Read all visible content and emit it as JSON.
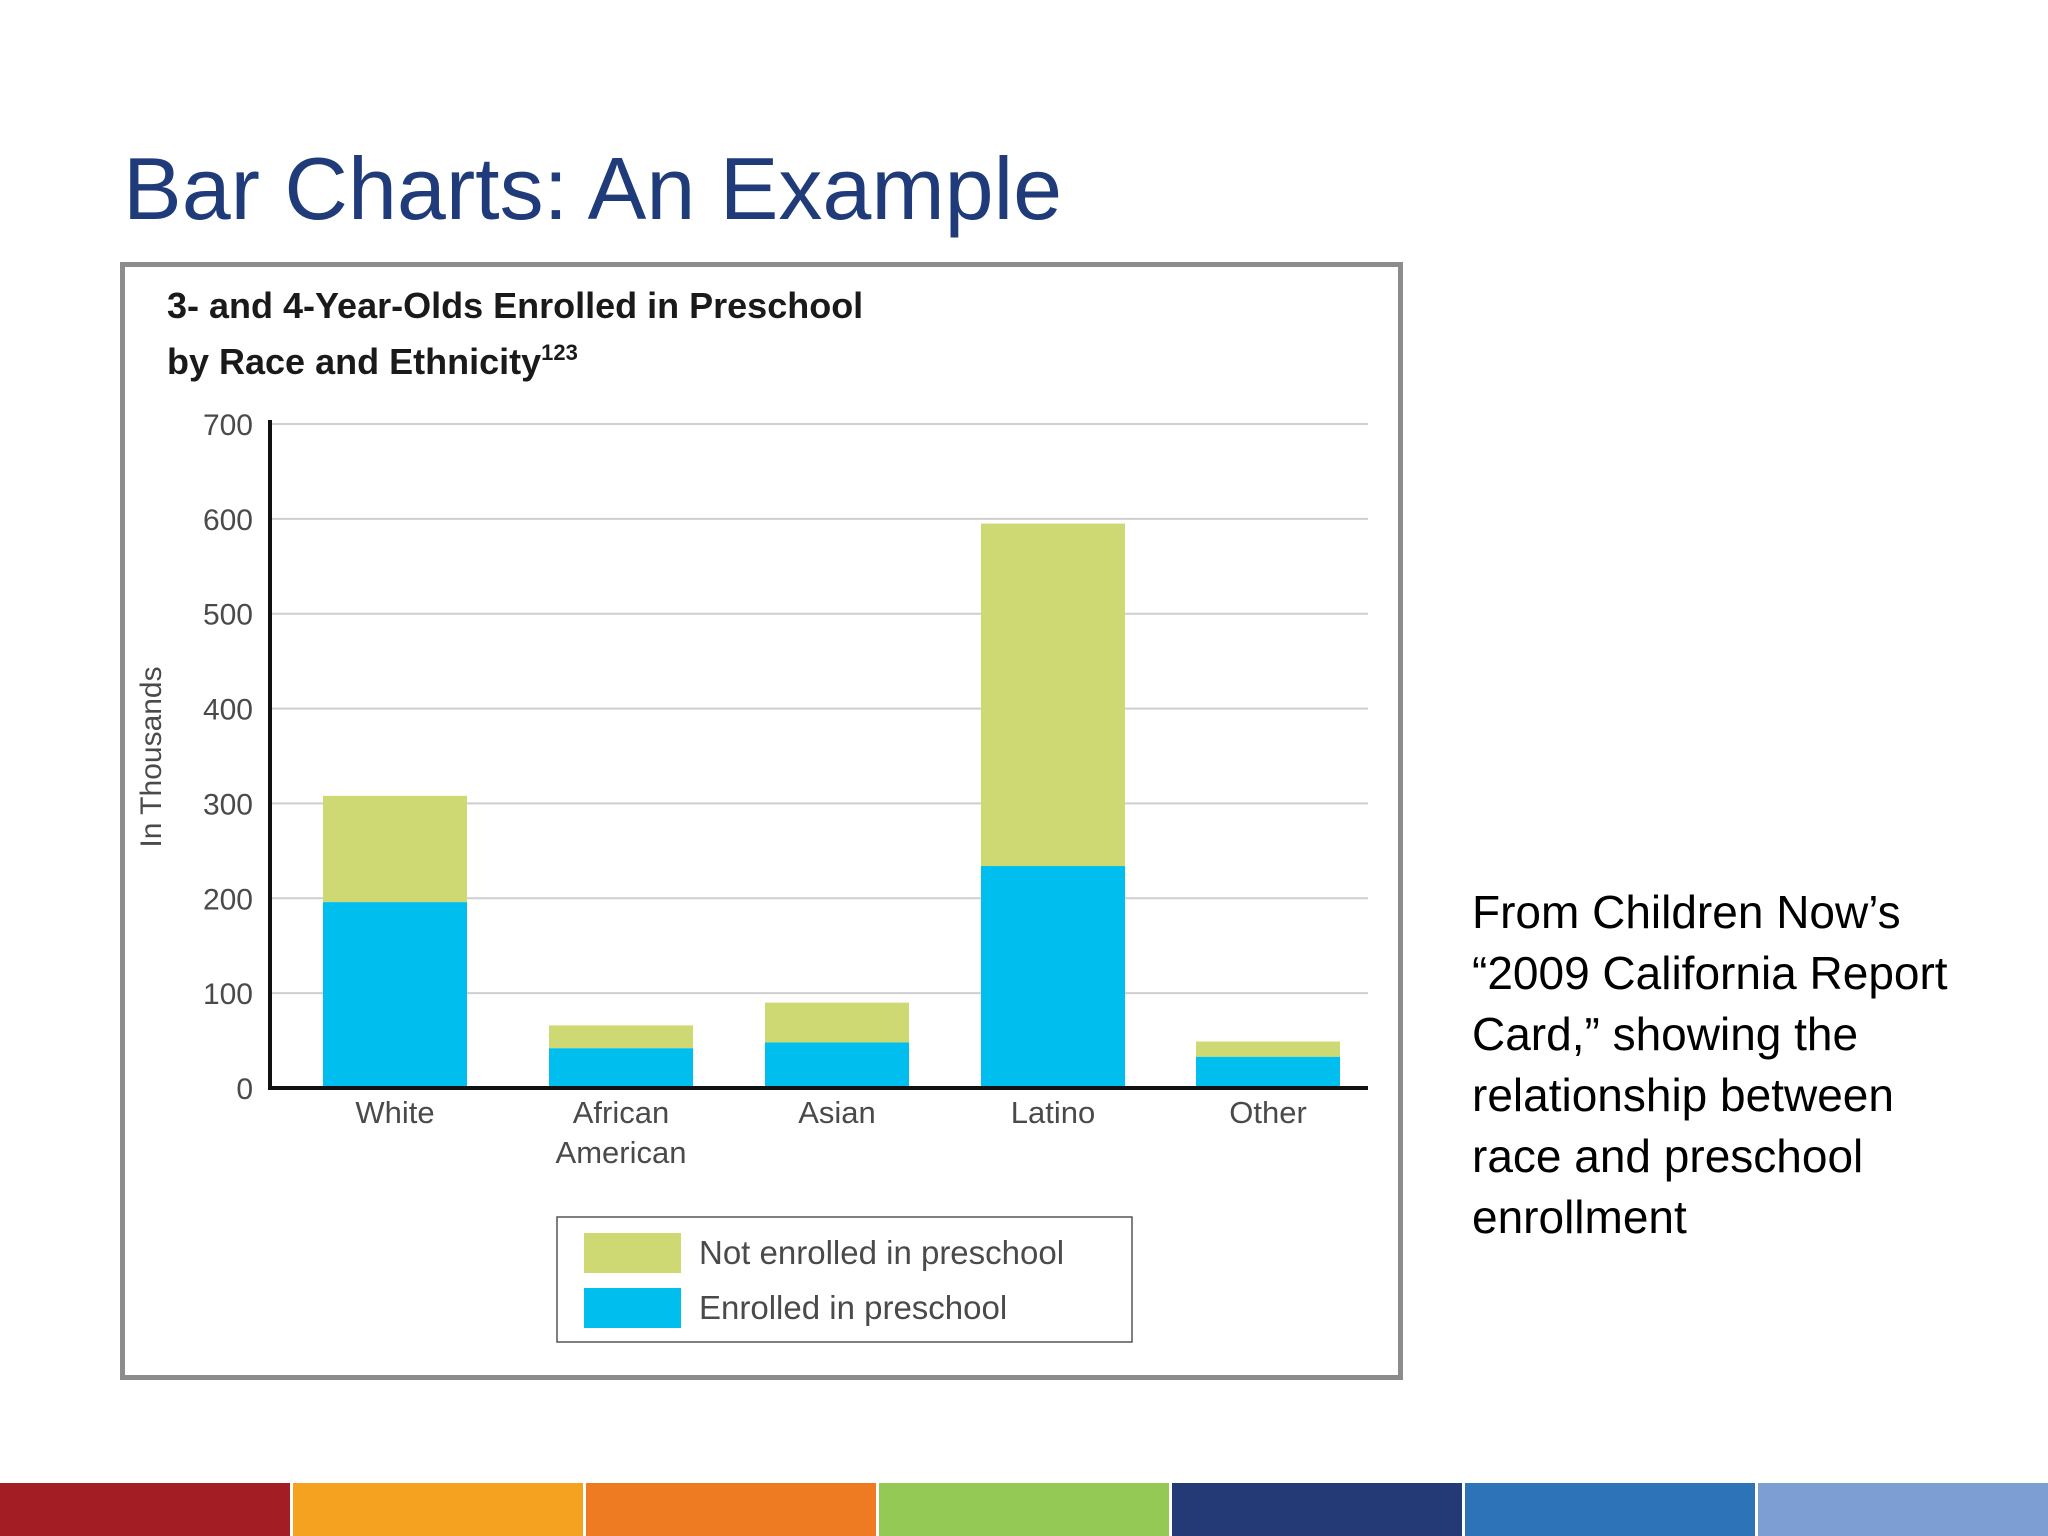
{
  "slide": {
    "title": "Bar Charts:  An Example",
    "caption": "From Children Now’s “2009 California Report Card,” showing the relationship between race and preschool enrollment"
  },
  "footer_colors": [
    "#a31e24",
    "#f4a21f",
    "#ee7a22",
    "#93c954",
    "#233a77",
    "#2c73b8",
    "#7d9ed3"
  ],
  "chart_data": {
    "type": "bar",
    "stacked": true,
    "title_line1": "3- and 4-Year-Olds Enrolled in Preschool",
    "title_line2": "by Race and Ethnicity",
    "title_superscript": "123",
    "ylabel": "In Thousands",
    "ylim": [
      0,
      700
    ],
    "yticks": [
      0,
      100,
      200,
      300,
      400,
      500,
      600,
      700
    ],
    "grid": true,
    "categories": [
      "White",
      "African\nAmerican",
      "Asian",
      "Latino",
      "Other"
    ],
    "series": [
      {
        "name": "Enrolled in preschool",
        "color": "#00bfef",
        "values": [
          196,
          42,
          48,
          234,
          33
        ]
      },
      {
        "name": "Not enrolled in preschool",
        "color": "#cfd974",
        "values": [
          112,
          24,
          42,
          361,
          16
        ]
      }
    ],
    "legend": {
      "placement": "bottom",
      "order": [
        "Not enrolled in preschool",
        "Enrolled in preschool"
      ]
    }
  }
}
